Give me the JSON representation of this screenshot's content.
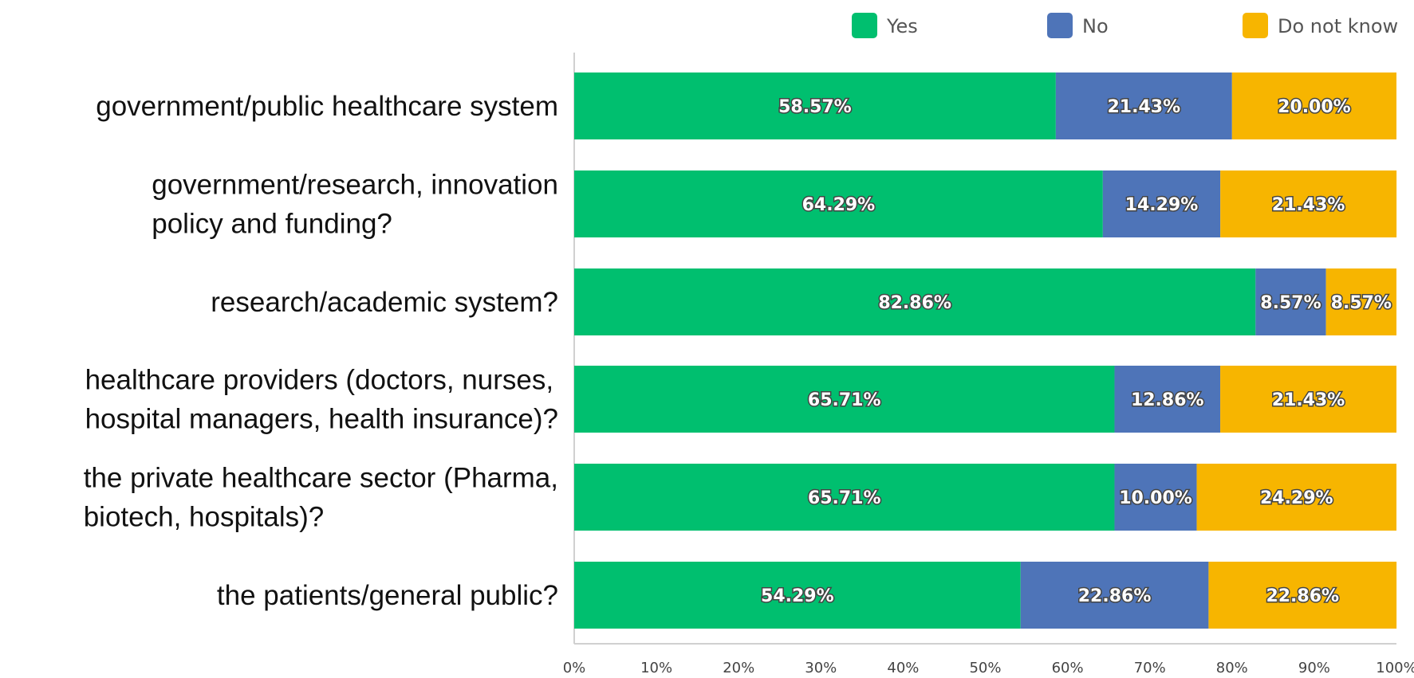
{
  "chart_data": {
    "type": "bar",
    "orientation": "horizontal",
    "stacked": true,
    "percent": true,
    "categories": [
      [
        "government/public healthcare system"
      ],
      [
        "government/research, innovation",
        "policy and funding?"
      ],
      [
        "research/academic system?"
      ],
      [
        "healthcare providers (doctors, nurses,",
        "hospital managers, health insurance)?"
      ],
      [
        "the private healthcare sector (Pharma,",
        "biotech, hospitals)?"
      ],
      [
        "the patients/general public?"
      ]
    ],
    "series": [
      {
        "name": "Yes",
        "color": "#00bf6f",
        "values": [
          58.57,
          64.29,
          82.86,
          65.71,
          65.71,
          54.29
        ],
        "labels": [
          "58.57%",
          "64.29%",
          "82.86%",
          "65.71%",
          "65.71%",
          "54.29%"
        ]
      },
      {
        "name": "No",
        "color": "#4e74b8",
        "values": [
          21.43,
          14.29,
          8.57,
          12.86,
          10.0,
          22.86
        ],
        "labels": [
          "21.43%",
          "14.29%",
          "8.57%",
          "12.86%",
          "10.00%",
          "22.86%"
        ]
      },
      {
        "name": "Do not know",
        "color": "#f7b500",
        "values": [
          20.0,
          21.43,
          8.57,
          21.43,
          24.29,
          22.86
        ],
        "labels": [
          "20.00%",
          "21.43%",
          "8.57%",
          "21.43%",
          "24.29%",
          "22.86%"
        ]
      }
    ],
    "x_ticks": [
      "0%",
      "10%",
      "20%",
      "30%",
      "40%",
      "50%",
      "60%",
      "70%",
      "80%",
      "90%",
      "100%"
    ],
    "xlim": [
      0,
      100
    ],
    "legend_position": "top-right",
    "grid": false,
    "title": "",
    "xlabel": "",
    "ylabel": ""
  }
}
